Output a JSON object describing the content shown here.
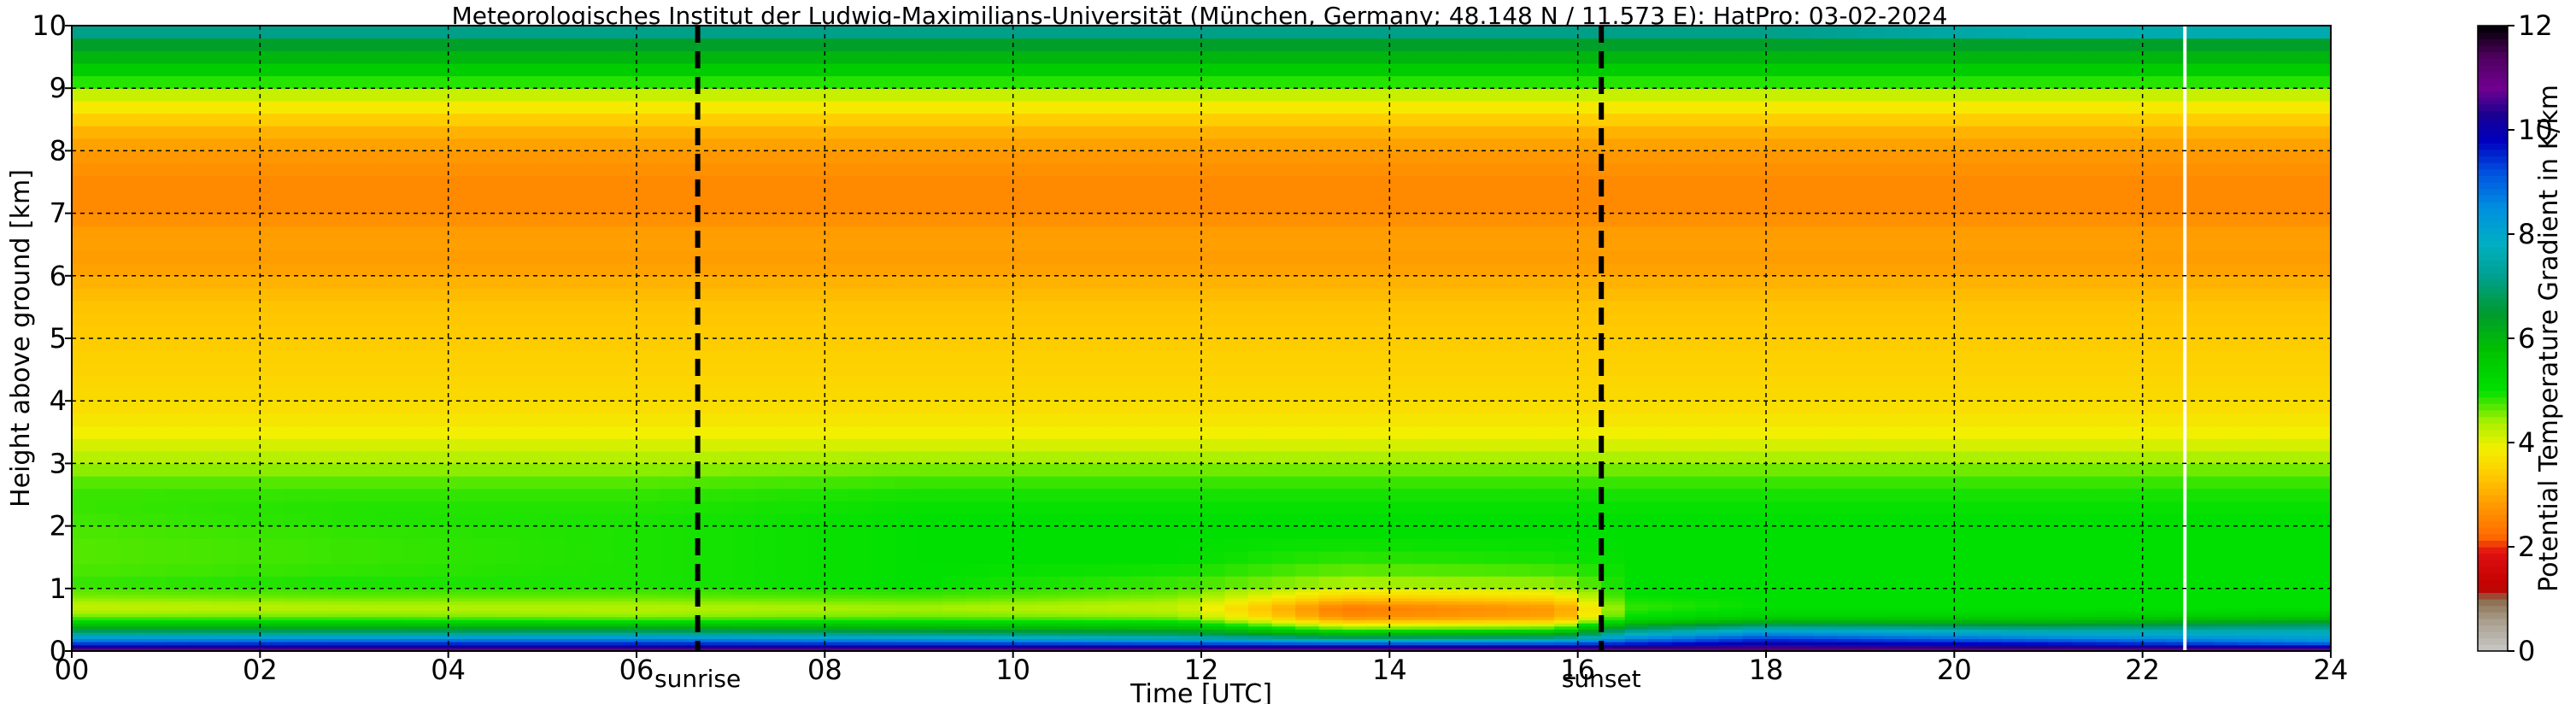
{
  "chart_data": {
    "type": "heatmap",
    "title": "Meteorologisches Institut der Ludwig-Maximilians-Universität (München, Germany; 48.148 N / 11.573 E):    HatPro: 03-02-2024",
    "xlabel": "Time [UTC]",
    "ylabel": "Height above ground [km]",
    "colorbar_label": "Potential Temperature Gradient in K/km",
    "xlim": [
      0,
      24
    ],
    "ylim": [
      0,
      10
    ],
    "clim": [
      0,
      12
    ],
    "x_ticks": [
      0,
      2,
      4,
      6,
      8,
      10,
      12,
      14,
      16,
      18,
      20,
      22,
      24
    ],
    "x_tick_labels": [
      "00",
      "02",
      "04",
      "06",
      "08",
      "10",
      "12",
      "14",
      "16",
      "18",
      "20",
      "22",
      "24"
    ],
    "y_ticks": [
      0,
      1,
      2,
      3,
      4,
      5,
      6,
      7,
      8,
      9,
      10
    ],
    "y_tick_labels": [
      "0",
      "1",
      "2",
      "3",
      "4",
      "5",
      "6",
      "7",
      "8",
      "9",
      "10"
    ],
    "colorbar_ticks": [
      0,
      2,
      4,
      6,
      8,
      10,
      12
    ],
    "colorbar_tick_labels": [
      "0",
      "2",
      "4",
      "6",
      "8",
      "10",
      "12"
    ],
    "grid": true,
    "events": [
      {
        "label": "sunrise",
        "time": 6.65
      },
      {
        "label": "sunset",
        "time": 16.25
      }
    ],
    "gap_time": 22.45,
    "colormap": [
      {
        "v": 0.0,
        "color": "#c8c8c8"
      },
      {
        "v": 0.6,
        "color": "#a89d8c"
      },
      {
        "v": 1.0,
        "color": "#8a6a4a"
      },
      {
        "v": 1.2,
        "color": "#c00000"
      },
      {
        "v": 1.9,
        "color": "#e01010"
      },
      {
        "v": 2.2,
        "color": "#ff6a00"
      },
      {
        "v": 2.8,
        "color": "#ff9a00"
      },
      {
        "v": 3.4,
        "color": "#ffcc00"
      },
      {
        "v": 3.9,
        "color": "#f2f000"
      },
      {
        "v": 4.4,
        "color": "#a8f000"
      },
      {
        "v": 5.0,
        "color": "#00e000"
      },
      {
        "v": 5.8,
        "color": "#00c000"
      },
      {
        "v": 6.5,
        "color": "#009a30"
      },
      {
        "v": 7.2,
        "color": "#00a090"
      },
      {
        "v": 7.8,
        "color": "#00b0c0"
      },
      {
        "v": 8.5,
        "color": "#0090e0"
      },
      {
        "v": 9.2,
        "color": "#0050e0"
      },
      {
        "v": 9.8,
        "color": "#0000c0"
      },
      {
        "v": 10.3,
        "color": "#1a0090"
      },
      {
        "v": 10.8,
        "color": "#700090"
      },
      {
        "v": 11.4,
        "color": "#500060"
      },
      {
        "v": 12.0,
        "color": "#000000"
      }
    ],
    "profile_heights": [
      0,
      0.08,
      0.15,
      0.22,
      0.3,
      0.38,
      0.45,
      0.55,
      0.7,
      0.9,
      1.1,
      1.4,
      1.8,
      2.2,
      2.6,
      3.0,
      3.3,
      3.6,
      4.0,
      4.5,
      5.0,
      5.5,
      5.9,
      6.2,
      6.6,
      7.0,
      7.5,
      8.0,
      8.3,
      8.6,
      8.9,
      9.2,
      9.5,
      9.7,
      10.0
    ],
    "profiles": [
      {
        "time": 0,
        "values": [
          11.5,
          10.0,
          9.0,
          8.2,
          7.0,
          6.2,
          5.5,
          4.6,
          4.2,
          4.6,
          4.8,
          4.7,
          4.7,
          4.8,
          4.8,
          4.4,
          4.1,
          3.8,
          3.6,
          3.5,
          3.4,
          3.3,
          3.1,
          2.8,
          2.9,
          2.6,
          2.6,
          2.8,
          3.1,
          3.6,
          4.2,
          5.2,
          6.0,
          6.4,
          7.5
        ]
      },
      {
        "time": 3,
        "values": [
          11.5,
          10.0,
          9.2,
          8.2,
          7.0,
          6.2,
          5.5,
          4.6,
          4.3,
          4.7,
          4.9,
          4.8,
          4.8,
          4.9,
          4.8,
          4.4,
          4.1,
          3.8,
          3.6,
          3.5,
          3.4,
          3.3,
          3.1,
          2.8,
          2.9,
          2.6,
          2.6,
          2.8,
          3.1,
          3.6,
          4.2,
          5.2,
          6.0,
          6.4,
          7.5
        ]
      },
      {
        "time": 6,
        "values": [
          11.5,
          10.0,
          9.2,
          8.3,
          7.0,
          6.2,
          5.4,
          4.5,
          4.3,
          4.7,
          4.9,
          4.9,
          4.9,
          4.9,
          4.8,
          4.4,
          4.1,
          3.8,
          3.6,
          3.5,
          3.4,
          3.3,
          3.1,
          2.8,
          2.9,
          2.6,
          2.6,
          2.8,
          3.1,
          3.6,
          4.2,
          5.2,
          6.0,
          6.4,
          7.5
        ]
      },
      {
        "time": 9,
        "values": [
          11.5,
          10.0,
          9.0,
          8.0,
          6.8,
          6.0,
          5.4,
          4.6,
          4.4,
          4.8,
          5.0,
          5.0,
          5.0,
          5.0,
          4.9,
          4.5,
          4.1,
          3.8,
          3.6,
          3.5,
          3.4,
          3.3,
          3.1,
          2.8,
          2.9,
          2.6,
          2.6,
          2.8,
          3.1,
          3.6,
          4.2,
          5.2,
          6.0,
          6.4,
          7.5
        ]
      },
      {
        "time": 11.8,
        "values": [
          11.5,
          10.0,
          8.8,
          7.6,
          6.6,
          5.8,
          5.2,
          4.5,
          4.2,
          4.6,
          4.8,
          5.0,
          5.0,
          5.0,
          4.9,
          4.5,
          4.1,
          3.8,
          3.6,
          3.5,
          3.4,
          3.3,
          3.1,
          2.8,
          2.9,
          2.6,
          2.6,
          2.8,
          3.1,
          3.6,
          4.2,
          5.2,
          6.0,
          6.4,
          7.5
        ]
      },
      {
        "time": 13.5,
        "values": [
          11.5,
          10.0,
          8.5,
          6.8,
          5.6,
          4.4,
          3.6,
          2.6,
          2.4,
          3.6,
          4.4,
          4.8,
          5.0,
          5.0,
          4.9,
          4.5,
          4.1,
          3.8,
          3.6,
          3.5,
          3.4,
          3.3,
          3.1,
          2.8,
          2.9,
          2.6,
          2.6,
          2.8,
          3.1,
          3.6,
          4.2,
          5.2,
          6.0,
          6.4,
          7.5
        ]
      },
      {
        "time": 15.8,
        "values": [
          11.5,
          10.0,
          8.6,
          7.0,
          5.8,
          4.6,
          3.8,
          2.9,
          2.8,
          3.8,
          4.5,
          4.9,
          5.0,
          5.0,
          4.9,
          4.5,
          4.1,
          3.8,
          3.6,
          3.5,
          3.4,
          3.3,
          3.1,
          2.8,
          2.9,
          2.6,
          2.6,
          2.8,
          3.1,
          3.6,
          4.2,
          5.2,
          6.0,
          6.4,
          7.5
        ]
      },
      {
        "time": 16.5,
        "values": [
          11.5,
          10.2,
          9.2,
          8.4,
          7.4,
          6.6,
          5.8,
          5.0,
          4.8,
          5.0,
          5.0,
          5.0,
          5.0,
          5.0,
          4.9,
          4.5,
          4.1,
          3.8,
          3.6,
          3.5,
          3.4,
          3.3,
          3.1,
          2.8,
          2.9,
          2.6,
          2.6,
          2.8,
          3.1,
          3.6,
          4.2,
          5.2,
          6.0,
          6.4,
          7.5
        ]
      },
      {
        "time": 18,
        "values": [
          11.5,
          10.4,
          9.8,
          9.2,
          8.4,
          7.4,
          6.4,
          5.4,
          5.0,
          5.0,
          5.0,
          5.0,
          5.0,
          5.0,
          4.9,
          4.5,
          4.1,
          3.8,
          3.6,
          3.5,
          3.4,
          3.3,
          3.1,
          2.8,
          2.9,
          2.6,
          2.6,
          2.8,
          3.1,
          3.6,
          4.2,
          5.2,
          6.0,
          6.4,
          7.5
        ]
      },
      {
        "time": 21,
        "values": [
          11.5,
          10.2,
          9.4,
          8.6,
          7.8,
          7.0,
          6.2,
          5.4,
          5.0,
          5.0,
          5.0,
          5.0,
          5.0,
          5.0,
          4.9,
          4.5,
          4.1,
          3.8,
          3.6,
          3.5,
          3.4,
          3.3,
          3.1,
          2.8,
          2.9,
          2.6,
          2.6,
          2.8,
          3.1,
          3.6,
          4.2,
          5.2,
          6.0,
          6.4,
          8.2
        ]
      },
      {
        "time": 24,
        "values": [
          11.5,
          9.8,
          8.6,
          8.2,
          7.8,
          7.2,
          6.6,
          5.6,
          5.0,
          5.0,
          5.0,
          5.0,
          5.0,
          5.0,
          4.9,
          4.5,
          4.1,
          3.8,
          3.6,
          3.5,
          3.4,
          3.3,
          3.1,
          2.8,
          2.9,
          2.6,
          2.6,
          2.8,
          3.1,
          3.6,
          4.2,
          5.2,
          6.0,
          6.4,
          8.2
        ]
      }
    ]
  }
}
